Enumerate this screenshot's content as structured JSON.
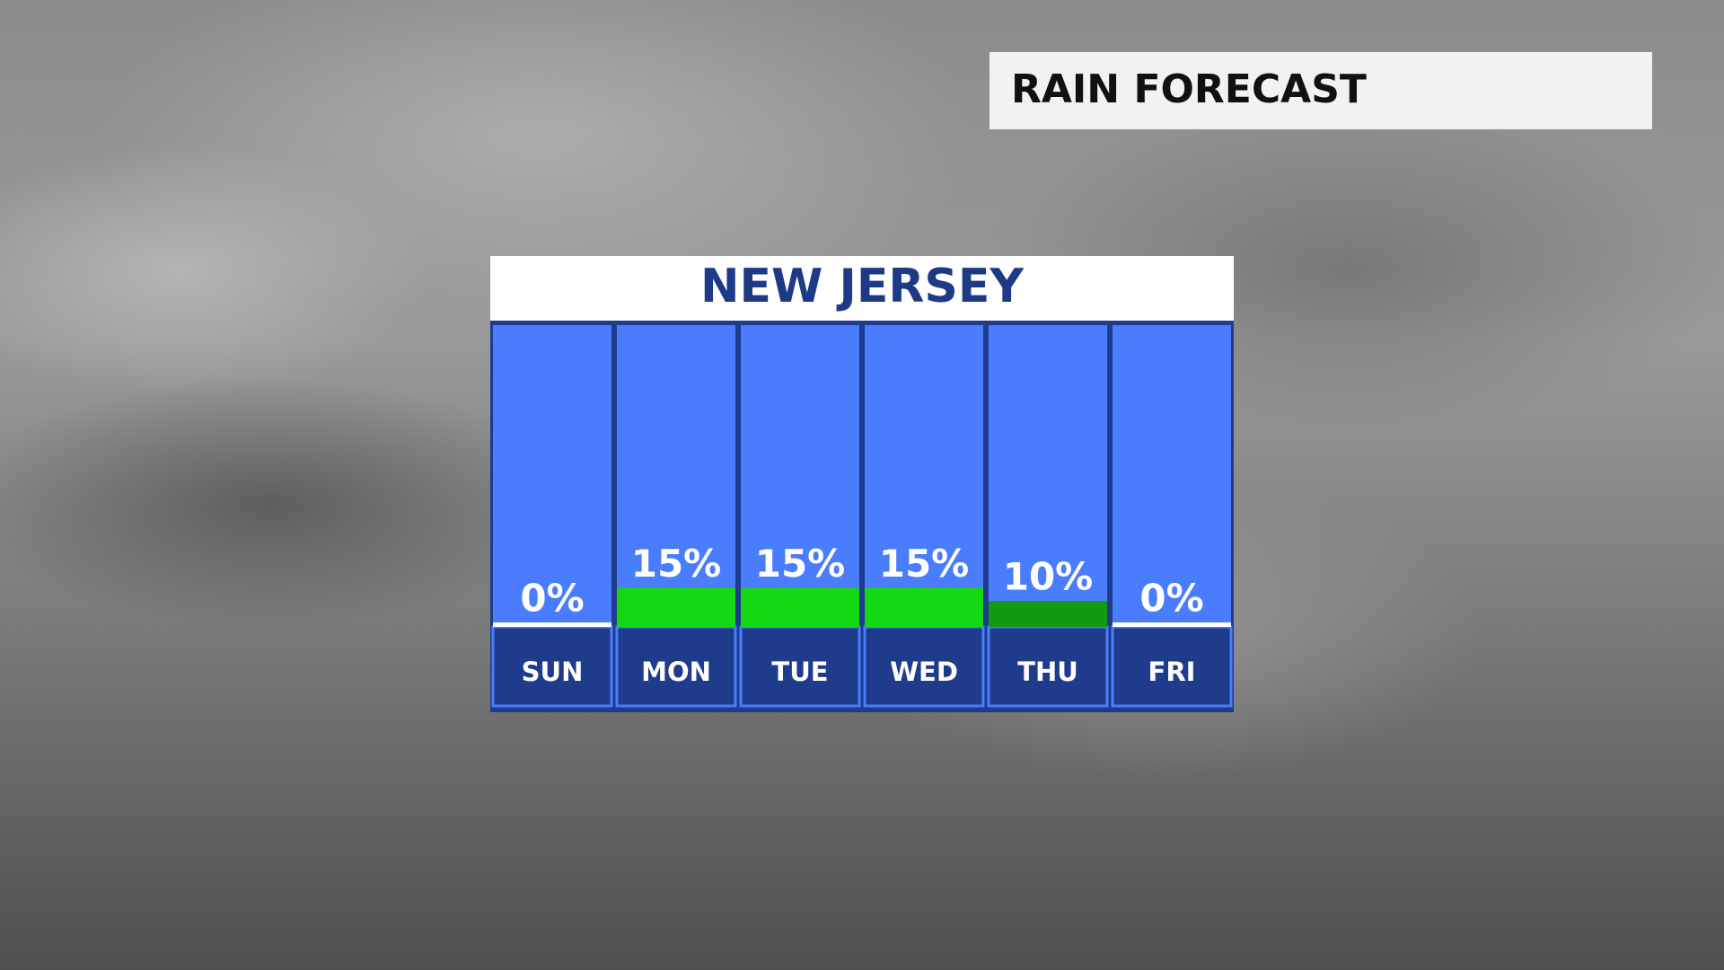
{
  "header": {
    "title": "RAIN FORECAST"
  },
  "chart_data": {
    "type": "bar",
    "title": "NEW JERSEY",
    "categories": [
      "SUN",
      "MON",
      "TUE",
      "WED",
      "THU",
      "FRI"
    ],
    "values": [
      0,
      15,
      15,
      15,
      10,
      0
    ],
    "value_labels": [
      "0%",
      "15%",
      "15%",
      "15%",
      "10%",
      "0%"
    ],
    "colors": [
      "#ffffff",
      "#12d912",
      "#12d912",
      "#12d912",
      "#139a13",
      "#ffffff"
    ]
  }
}
